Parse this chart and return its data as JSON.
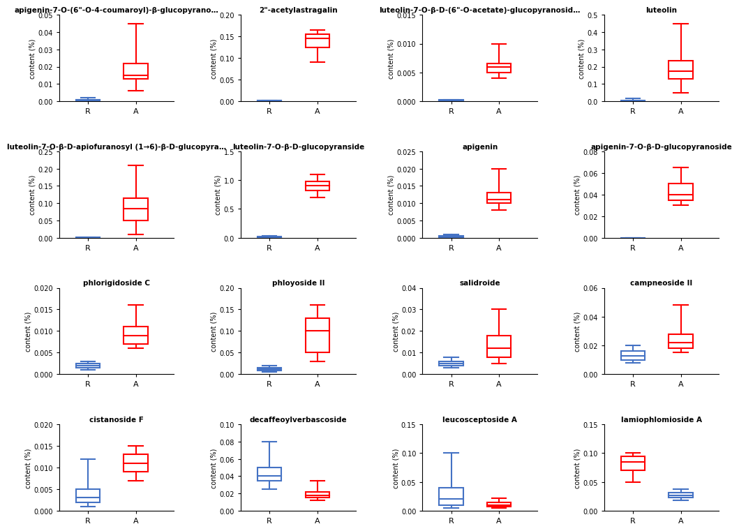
{
  "plots": [
    {
      "title": "apigenin-7-O-(6\"-O-4-coumaroyl)-β-glucopyrano…",
      "ylim": [
        0,
        0.05
      ],
      "yticks": [
        0.0,
        0.01,
        0.02,
        0.03,
        0.04,
        0.05
      ],
      "yticklabels": [
        "0.00",
        "0.01",
        "0.02",
        "0.03",
        "0.04",
        "0.05"
      ],
      "R_color": "#4472C4",
      "A_color": "#FF0000",
      "R": {
        "whislo": 0.0,
        "q1": 0.0,
        "med": 0.001,
        "q3": 0.001,
        "whishi": 0.002
      },
      "A": {
        "whislo": 0.006,
        "q1": 0.013,
        "med": 0.015,
        "q3": 0.022,
        "whishi": 0.045
      }
    },
    {
      "title": "2\"-acetylastragalin",
      "ylim": [
        0,
        0.2
      ],
      "yticks": [
        0.0,
        0.05,
        0.1,
        0.15,
        0.2
      ],
      "yticklabels": [
        "0.00",
        "0.05",
        "0.10",
        "0.15",
        "0.20"
      ],
      "R_color": "#4472C4",
      "A_color": "#FF0000",
      "R": {
        "whislo": 0.0,
        "q1": 0.0,
        "med": 0.001,
        "q3": 0.001,
        "whishi": 0.002
      },
      "A": {
        "whislo": 0.09,
        "q1": 0.125,
        "med": 0.145,
        "q3": 0.155,
        "whishi": 0.165
      }
    },
    {
      "title": "luteolin-7-O-β-D-(6\"-O-acetate)-glucopyranosid…",
      "ylim": [
        0,
        0.015
      ],
      "yticks": [
        0.0,
        0.005,
        0.01,
        0.015
      ],
      "yticklabels": [
        "0.000",
        "0.005",
        "0.010",
        "0.015"
      ],
      "R_color": "#4472C4",
      "A_color": "#FF0000",
      "R": {
        "whislo": 0.0,
        "q1": 0.0,
        "med": 0.0001,
        "q3": 0.0002,
        "whishi": 0.0003
      },
      "A": {
        "whislo": 0.004,
        "q1": 0.005,
        "med": 0.006,
        "q3": 0.0065,
        "whishi": 0.01
      }
    },
    {
      "title": "luteolin",
      "ylim": [
        0,
        0.5
      ],
      "yticks": [
        0.0,
        0.1,
        0.2,
        0.3,
        0.4,
        0.5
      ],
      "yticklabels": [
        "0.0",
        "0.1",
        "0.2",
        "0.3",
        "0.4",
        "0.5"
      ],
      "R_color": "#4472C4",
      "A_color": "#FF0000",
      "R": {
        "whislo": 0.0,
        "q1": 0.001,
        "med": 0.002,
        "q3": 0.005,
        "whishi": 0.015
      },
      "A": {
        "whislo": 0.05,
        "q1": 0.13,
        "med": 0.175,
        "q3": 0.235,
        "whishi": 0.45
      }
    },
    {
      "title": "luteolin-7-O-β-D-apiofuranosyl (1→6)-β-D-glucopyra…",
      "ylim": [
        0,
        0.25
      ],
      "yticks": [
        0.0,
        0.05,
        0.1,
        0.15,
        0.2,
        0.25
      ],
      "yticklabels": [
        "0.00",
        "0.05",
        "0.10",
        "0.15",
        "0.20",
        "0.25"
      ],
      "R_color": "#4472C4",
      "A_color": "#FF0000",
      "R": {
        "whislo": 0.0,
        "q1": 0.0,
        "med": 0.0003,
        "q3": 0.0005,
        "whishi": 0.001
      },
      "A": {
        "whislo": 0.01,
        "q1": 0.05,
        "med": 0.085,
        "q3": 0.115,
        "whishi": 0.21
      }
    },
    {
      "title": "luteolin-7-O-β-D-glucopyranside",
      "ylim": [
        0,
        1.5
      ],
      "yticks": [
        0.0,
        0.5,
        1.0,
        1.5
      ],
      "yticklabels": [
        "0.0",
        "0.5",
        "1.0",
        "1.5"
      ],
      "R_color": "#4472C4",
      "A_color": "#FF0000",
      "R": {
        "whislo": 0.0,
        "q1": 0.005,
        "med": 0.01,
        "q3": 0.02,
        "whishi": 0.03
      },
      "A": {
        "whislo": 0.7,
        "q1": 0.82,
        "med": 0.9,
        "q3": 0.98,
        "whishi": 1.1
      }
    },
    {
      "title": "apigenin",
      "ylim": [
        0,
        0.025
      ],
      "yticks": [
        0.0,
        0.005,
        0.01,
        0.015,
        0.02,
        0.025
      ],
      "yticklabels": [
        "0.000",
        "0.005",
        "0.010",
        "0.015",
        "0.020",
        "0.025"
      ],
      "R_color": "#4472C4",
      "A_color": "#FF0000",
      "R": {
        "whislo": 0.0,
        "q1": 0.0,
        "med": 0.0002,
        "q3": 0.0005,
        "whishi": 0.001
      },
      "A": {
        "whislo": 0.008,
        "q1": 0.01,
        "med": 0.011,
        "q3": 0.013,
        "whishi": 0.02
      }
    },
    {
      "title": "apigenin-7-O-β-D-glucopyranoside",
      "ylim": [
        0,
        0.08
      ],
      "yticks": [
        0.0,
        0.02,
        0.04,
        0.06,
        0.08
      ],
      "yticklabels": [
        "0.00",
        "0.02",
        "0.04",
        "0.06",
        "0.08"
      ],
      "R_color": "#4472C4",
      "A_color": "#FF0000",
      "R": {
        "whislo": 0.0,
        "q1": 0.0,
        "med": 0.0,
        "q3": 0.0,
        "whishi": 0.0
      },
      "A": {
        "whislo": 0.03,
        "q1": 0.035,
        "med": 0.04,
        "q3": 0.05,
        "whishi": 0.065
      }
    },
    {
      "title": "phlorigidoside C",
      "ylim": [
        0,
        0.02
      ],
      "yticks": [
        0.0,
        0.005,
        0.01,
        0.015,
        0.02
      ],
      "yticklabels": [
        "0.000",
        "0.005",
        "0.010",
        "0.015",
        "0.020"
      ],
      "R_color": "#4472C4",
      "A_color": "#FF0000",
      "R": {
        "whislo": 0.001,
        "q1": 0.0015,
        "med": 0.002,
        "q3": 0.0025,
        "whishi": 0.003
      },
      "A": {
        "whislo": 0.006,
        "q1": 0.007,
        "med": 0.009,
        "q3": 0.011,
        "whishi": 0.016
      }
    },
    {
      "title": "phloyoside II",
      "ylim": [
        0,
        0.2
      ],
      "yticks": [
        0.0,
        0.05,
        0.1,
        0.15,
        0.2
      ],
      "yticklabels": [
        "0.00",
        "0.05",
        "0.10",
        "0.15",
        "0.20"
      ],
      "R_color": "#4472C4",
      "A_color": "#FF0000",
      "R": {
        "whislo": 0.005,
        "q1": 0.008,
        "med": 0.012,
        "q3": 0.015,
        "whishi": 0.02
      },
      "A": {
        "whislo": 0.03,
        "q1": 0.05,
        "med": 0.1,
        "q3": 0.13,
        "whishi": 0.16
      }
    },
    {
      "title": "salidroide",
      "ylim": [
        0,
        0.04
      ],
      "yticks": [
        0.0,
        0.01,
        0.02,
        0.03,
        0.04
      ],
      "yticklabels": [
        "0.00",
        "0.01",
        "0.02",
        "0.03",
        "0.04"
      ],
      "R_color": "#4472C4",
      "A_color": "#FF0000",
      "R": {
        "whislo": 0.003,
        "q1": 0.004,
        "med": 0.005,
        "q3": 0.006,
        "whishi": 0.008
      },
      "A": {
        "whislo": 0.005,
        "q1": 0.008,
        "med": 0.012,
        "q3": 0.018,
        "whishi": 0.03
      }
    },
    {
      "title": "campneoside II",
      "ylim": [
        0,
        0.06
      ],
      "yticks": [
        0.0,
        0.02,
        0.04,
        0.06
      ],
      "yticklabels": [
        "0.00",
        "0.02",
        "0.04",
        "0.06"
      ],
      "R_color": "#4472C4",
      "A_color": "#FF0000",
      "R": {
        "whislo": 0.008,
        "q1": 0.01,
        "med": 0.013,
        "q3": 0.016,
        "whishi": 0.02
      },
      "A": {
        "whislo": 0.015,
        "q1": 0.018,
        "med": 0.022,
        "q3": 0.028,
        "whishi": 0.048
      }
    },
    {
      "title": "cistanoside F",
      "ylim": [
        0,
        0.02
      ],
      "yticks": [
        0.0,
        0.005,
        0.01,
        0.015,
        0.02
      ],
      "yticklabels": [
        "0.000",
        "0.005",
        "0.010",
        "0.015",
        "0.020"
      ],
      "R_color": "#4472C4",
      "A_color": "#FF0000",
      "R": {
        "whislo": 0.001,
        "q1": 0.002,
        "med": 0.003,
        "q3": 0.005,
        "whishi": 0.012
      },
      "A": {
        "whislo": 0.007,
        "q1": 0.009,
        "med": 0.011,
        "q3": 0.013,
        "whishi": 0.015
      }
    },
    {
      "title": "decaffeoylverbascoside",
      "ylim": [
        0,
        0.1
      ],
      "yticks": [
        0.0,
        0.02,
        0.04,
        0.06,
        0.08,
        0.1
      ],
      "yticklabels": [
        "0.00",
        "0.02",
        "0.04",
        "0.06",
        "0.08",
        "0.10"
      ],
      "R_color": "#4472C4",
      "A_color": "#FF0000",
      "R": {
        "whislo": 0.025,
        "q1": 0.035,
        "med": 0.04,
        "q3": 0.05,
        "whishi": 0.08
      },
      "A": {
        "whislo": 0.012,
        "q1": 0.015,
        "med": 0.018,
        "q3": 0.022,
        "whishi": 0.035
      }
    },
    {
      "title": "leucosceptoside A",
      "ylim": [
        0,
        0.15
      ],
      "yticks": [
        0.0,
        0.05,
        0.1,
        0.15
      ],
      "yticklabels": [
        "0.00",
        "0.05",
        "0.10",
        "0.15"
      ],
      "R_color": "#4472C4",
      "A_color": "#FF0000",
      "R": {
        "whislo": 0.005,
        "q1": 0.01,
        "med": 0.02,
        "q3": 0.04,
        "whishi": 0.1
      },
      "A": {
        "whislo": 0.005,
        "q1": 0.007,
        "med": 0.01,
        "q3": 0.015,
        "whishi": 0.022
      }
    },
    {
      "title": "lamiophlomioside A",
      "ylim": [
        0,
        0.15
      ],
      "yticks": [
        0.0,
        0.05,
        0.1,
        0.15
      ],
      "yticklabels": [
        "0.00",
        "0.05",
        "0.10",
        "0.15"
      ],
      "R_color": "#FF0000",
      "A_color": "#4472C4",
      "R": {
        "whislo": 0.05,
        "q1": 0.07,
        "med": 0.085,
        "q3": 0.095,
        "whishi": 0.1
      },
      "A": {
        "whislo": 0.018,
        "q1": 0.023,
        "med": 0.027,
        "q3": 0.032,
        "whishi": 0.038
      }
    }
  ],
  "xlabel_R": "R",
  "xlabel_A": "A",
  "ylabel": "content (%)",
  "nrows": 4,
  "ncols": 4,
  "lw": 1.5
}
